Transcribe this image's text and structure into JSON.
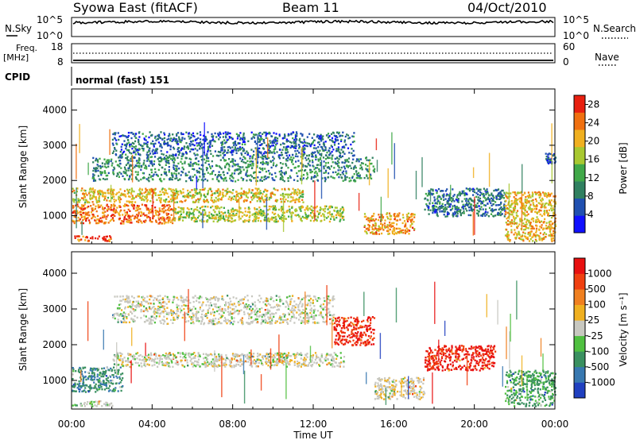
{
  "header": {
    "station": "Syowa East (fitACF)",
    "beam": "Beam 11",
    "date": "04/Oct/2010"
  },
  "noise_panel": {
    "left_label": "N.Sky",
    "right_label": "N.Search",
    "left_ticks": [
      "10^5",
      "10^0"
    ],
    "right_ticks": [
      "10^5",
      "10^0"
    ]
  },
  "freq_panel": {
    "left_label_1": "Freq.",
    "left_label_2": "[MHz]",
    "right_label": "Nave",
    "left_ticks": [
      "18",
      "8"
    ],
    "right_ticks": [
      "60",
      "0"
    ]
  },
  "cpid": {
    "label": "CPID",
    "value": "normal (fast) 151"
  },
  "time_axis": {
    "xlabel": "Time UT",
    "ticks": [
      "00:00",
      "04:00",
      "08:00",
      "12:00",
      "16:00",
      "20:00",
      "00:00"
    ]
  },
  "range_axis": {
    "ylabel": "Slant Range [km]",
    "ticks": [
      "1000",
      "2000",
      "3000",
      "4000"
    ]
  },
  "power_colorbar": {
    "label": "Power [dB]",
    "ticks": [
      "4",
      "8",
      "12",
      "16",
      "20",
      "24",
      "28"
    ],
    "colors": [
      "#1010ff",
      "#2050b0",
      "#308060",
      "#40a848",
      "#a8c830",
      "#f0b020",
      "#f07010",
      "#e82010"
    ]
  },
  "velocity_colorbar": {
    "label": "Velocity [m s⁻¹]",
    "ticks": [
      "1000",
      "500",
      "100",
      "25",
      "-25",
      "-100",
      "-500",
      "-1000"
    ],
    "colors": [
      "#2040c0",
      "#3878b0",
      "#3a9060",
      "#50c040",
      "#c8c8c0",
      "#f0b020",
      "#f08020",
      "#f04010",
      "#e81010"
    ]
  },
  "chart_data": {
    "type": "heatmap",
    "title": "Beam 11",
    "xlabel": "Time UT",
    "ylabel": "Slant Range [km]",
    "xlim": [
      0,
      24
    ],
    "ylim": [
      200,
      4600
    ],
    "x_unit": "hours UT",
    "panels": [
      {
        "name": "Power",
        "colorbar_label": "Power [dB]",
        "clim": [
          0,
          30
        ],
        "regions": [
          {
            "t0": 0.0,
            "t1": 11.5,
            "r0": 1400,
            "r1": 1800,
            "value": 19
          },
          {
            "t0": 0.0,
            "t1": 5.0,
            "r0": 800,
            "r1": 1350,
            "value": 24
          },
          {
            "t0": 5.0,
            "t1": 13.5,
            "r0": 850,
            "r1": 1300,
            "value": 17
          },
          {
            "t0": 1.0,
            "t1": 15.0,
            "r0": 2000,
            "r1": 2700,
            "value": 10
          },
          {
            "t0": 2.0,
            "t1": 14.0,
            "r0": 2700,
            "r1": 3400,
            "value": 7
          },
          {
            "t0": 14.5,
            "t1": 17.0,
            "r0": 500,
            "r1": 1100,
            "value": 22
          },
          {
            "t0": 17.5,
            "t1": 21.5,
            "r0": 1000,
            "r1": 1800,
            "value": 8
          },
          {
            "t0": 21.5,
            "t1": 24.0,
            "r0": 300,
            "r1": 1700,
            "value": 20
          },
          {
            "t0": 23.5,
            "t1": 24.0,
            "r0": 2500,
            "r1": 2800,
            "value": 5
          },
          {
            "t0": 0.0,
            "t1": 2.0,
            "r0": 300,
            "r1": 450,
            "value": 26
          }
        ]
      },
      {
        "name": "Velocity",
        "colorbar_label": "Velocity [m s⁻¹]",
        "clim": [
          -1000,
          1000
        ],
        "regions": [
          {
            "t0": 0.0,
            "t1": 2.5,
            "r0": 700,
            "r1": 1400,
            "value": -500
          },
          {
            "t0": 2.0,
            "t1": 13.5,
            "r0": 1400,
            "r1": 1800,
            "value": 0
          },
          {
            "t0": 2.0,
            "t1": 13.0,
            "r0": 2600,
            "r1": 3400,
            "value": 0
          },
          {
            "t0": 13.0,
            "t1": 15.0,
            "r0": 2000,
            "r1": 2800,
            "value": 800
          },
          {
            "t0": 15.0,
            "t1": 17.5,
            "r0": 500,
            "r1": 1100,
            "value": 60
          },
          {
            "t0": 17.5,
            "t1": 21.0,
            "r0": 1300,
            "r1": 2000,
            "value": 800
          },
          {
            "t0": 21.5,
            "t1": 24.0,
            "r0": 300,
            "r1": 1300,
            "value": -400
          },
          {
            "t0": 0.0,
            "t1": 2.0,
            "r0": 300,
            "r1": 450,
            "value": -80
          }
        ]
      }
    ]
  }
}
